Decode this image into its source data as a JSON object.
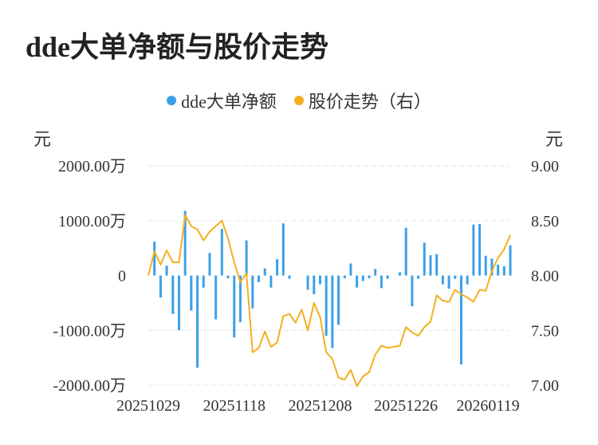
{
  "title": "dde大单净额与股价走势",
  "colors": {
    "bar": "#3ba0e9",
    "line": "#f2b01e",
    "grid": "#e6e6e6",
    "text": "#333333"
  },
  "chart_data": {
    "type": "bar",
    "legend_position": "top-center",
    "grid": true,
    "legend": [
      "dde大单净额",
      "股价走势（右）"
    ],
    "left_unit": "元",
    "right_unit": "元",
    "left_axis": {
      "min": -2000,
      "max": 2000,
      "ticks": [
        -2000,
        -1000,
        0,
        1000,
        2000
      ],
      "labels": [
        "-2000.00万",
        "-1000.00万",
        "0",
        "1000.00万",
        "2000.00万"
      ]
    },
    "right_axis": {
      "min": 7.0,
      "max": 9.0,
      "ticks": [
        7.0,
        7.5,
        8.0,
        8.5,
        9.0
      ],
      "labels": [
        "7.00",
        "7.50",
        "8.00",
        "8.50",
        "9.00"
      ]
    },
    "x_labels": [
      "20251029",
      "20251118",
      "20251208",
      "20251226",
      "20260119"
    ],
    "x_label_indices": [
      0,
      14,
      28,
      42,
      56
    ],
    "series": [
      {
        "name": "dde大单净额",
        "type": "bar",
        "values": [
          0,
          620,
          -400,
          180,
          -700,
          -1000,
          1180,
          -640,
          -1680,
          -220,
          410,
          -800,
          850,
          -50,
          -1130,
          -850,
          640,
          -600,
          -120,
          130,
          -220,
          300,
          950,
          -60,
          0,
          0,
          -260,
          -340,
          -160,
          -1100,
          -1320,
          -900,
          -50,
          220,
          -220,
          -100,
          -50,
          120,
          -230,
          -60,
          0,
          60,
          870,
          -560,
          -60,
          600,
          370,
          390,
          -160,
          -240,
          -60,
          -1620,
          -160,
          930,
          940,
          360,
          310,
          200,
          170,
          550
        ],
        "unit": "万"
      },
      {
        "name": "股价走势（右）",
        "type": "line",
        "values": [
          8.0,
          8.22,
          8.1,
          8.23,
          8.12,
          8.12,
          8.55,
          8.45,
          8.42,
          8.32,
          8.4,
          8.45,
          8.5,
          8.34,
          8.12,
          7.94,
          8.02,
          7.3,
          7.34,
          7.49,
          7.35,
          7.39,
          7.63,
          7.65,
          7.57,
          7.69,
          7.5,
          7.75,
          7.62,
          7.3,
          7.24,
          7.07,
          7.05,
          7.14,
          6.99,
          7.08,
          7.12,
          7.28,
          7.36,
          7.34,
          7.35,
          7.36,
          7.53,
          7.48,
          7.45,
          7.53,
          7.58,
          7.82,
          7.77,
          7.76,
          7.87,
          7.83,
          7.8,
          7.76,
          7.87,
          7.86,
          8.04,
          8.16,
          8.24,
          8.37
        ]
      }
    ]
  }
}
